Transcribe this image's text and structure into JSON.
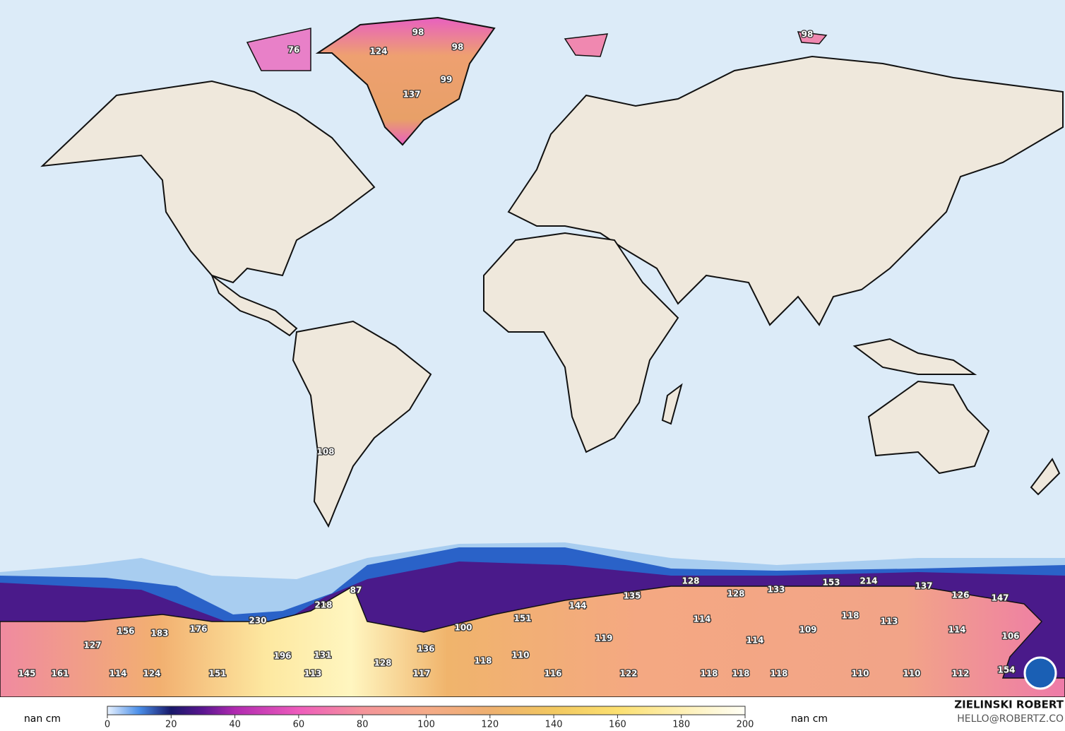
{
  "map": {
    "labels": [
      98,
      76,
      124,
      98,
      99,
      137,
      98,
      108,
      87,
      218,
      230,
      156,
      183,
      176,
      127,
      196,
      131,
      128,
      136,
      100,
      151,
      144,
      135,
      128,
      128,
      133,
      153,
      214,
      137,
      126,
      147,
      114,
      118,
      113,
      109,
      114,
      114,
      106,
      119,
      118,
      110,
      154,
      145,
      161,
      114,
      124,
      151,
      113,
      117,
      116,
      122,
      118,
      118,
      118,
      110,
      110,
      112
    ],
    "colorbar": {
      "unit_left": "nan cm",
      "unit_right": "nan cm",
      "range": [
        0,
        200
      ],
      "ticks": [
        0,
        20,
        40,
        60,
        80,
        100,
        120,
        140,
        160,
        180,
        200
      ]
    },
    "credit": {
      "name": "ZIELINSKI ROBERT",
      "contact": "HELLO@ROBERTZ.CO"
    }
  }
}
